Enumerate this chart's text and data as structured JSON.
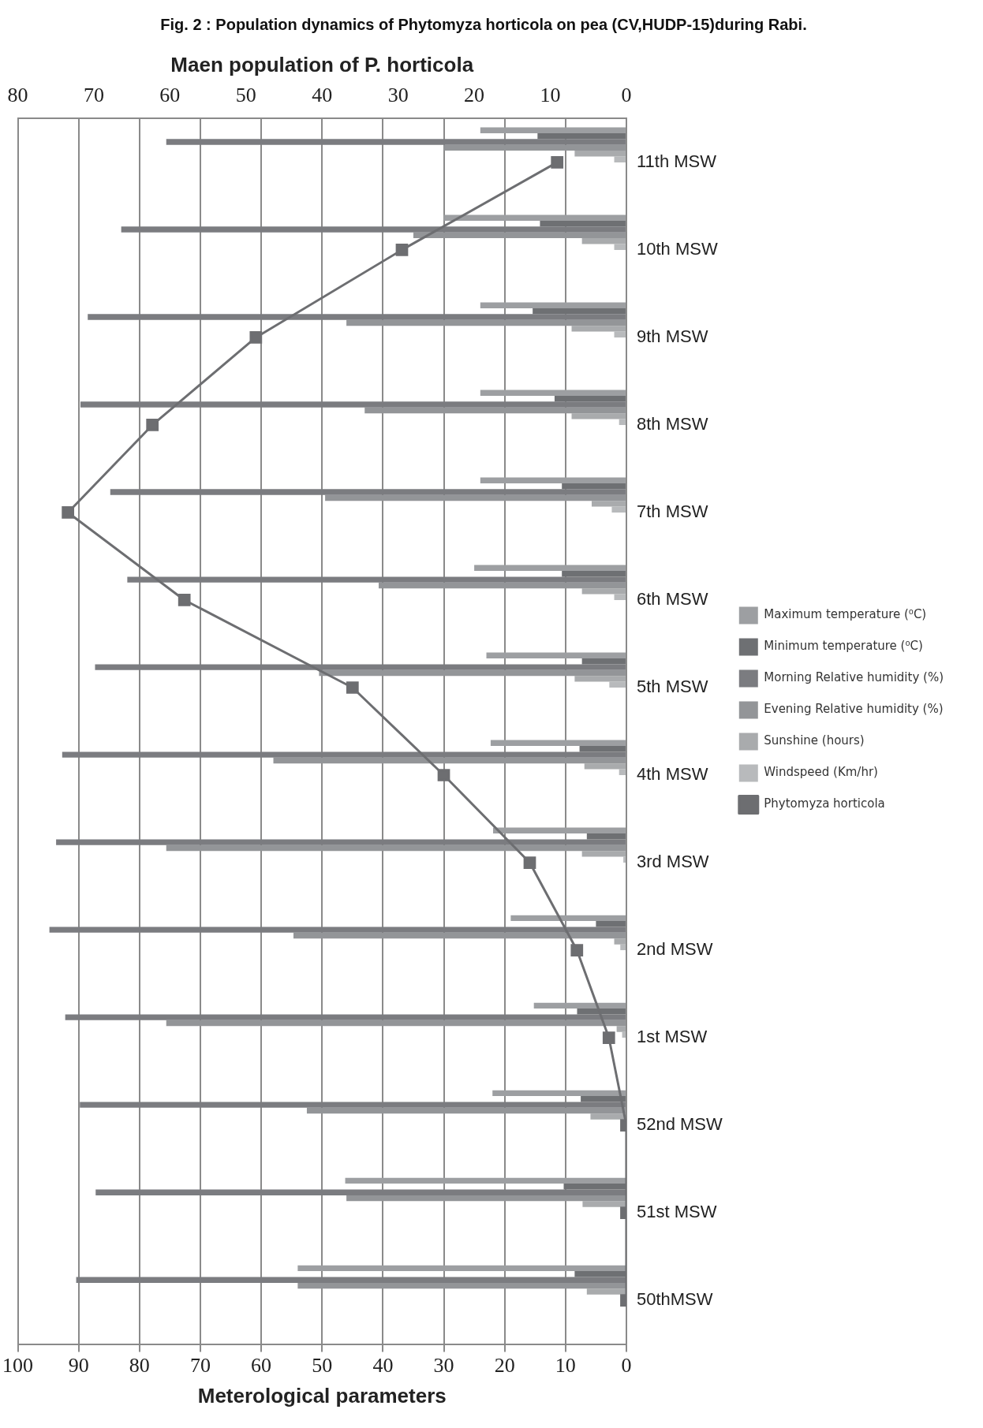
{
  "chart_data": {
    "type": "bar",
    "orientation": "horizontal",
    "title": "Fig. 2 : Population dynamics of Phytomyza horticola on pea (CV,HUDP-15)during Rabi.",
    "xlabel": "Meterological parameters",
    "x2label": "Maen population of P. horticola",
    "categories": [
      "11th MSW",
      "10th MSW",
      "9th MSW",
      "8th MSW",
      "7th MSW",
      "6th MSW",
      "5th MSW",
      "4th MSW",
      "3rd MSW",
      "2nd MSW",
      "1st MSW",
      "52nd MSW",
      "51st MSW",
      "50thMSW"
    ],
    "xlim": [
      100,
      0
    ],
    "xticks": [
      100,
      90,
      80,
      70,
      60,
      50,
      40,
      30,
      20,
      10,
      0
    ],
    "x2lim": [
      80,
      0
    ],
    "x2ticks": [
      80,
      70,
      60,
      50,
      40,
      30,
      20,
      10,
      0
    ],
    "grid": "x",
    "legend": "right",
    "series": [
      {
        "name": "Maximum temperature (⁰C)",
        "color": "#9d9fa2",
        "values": [
          24,
          30,
          24,
          24,
          24,
          25,
          23,
          22.3,
          21.9,
          19,
          15.2,
          22,
          46.2,
          54
        ]
      },
      {
        "name": "Minimum temperature (⁰C)",
        "color": "#6e7073",
        "values": [
          14.6,
          14.2,
          15.4,
          11.8,
          10.6,
          10.6,
          7.3,
          7.7,
          6.5,
          5,
          8.1,
          7.5,
          10.3,
          8.5
        ]
      },
      {
        "name": "Morning Relative humidity (%)",
        "color": "#7b7c80",
        "values": [
          75.6,
          83,
          88.5,
          89.7,
          84.8,
          82,
          87.3,
          92.7,
          93.7,
          94.8,
          92.2,
          89.8,
          87.2,
          90.4
        ]
      },
      {
        "name": "Evening Relative humidity (%)",
        "color": "#939598",
        "values": [
          30,
          35,
          46,
          43,
          49.5,
          40.7,
          50.5,
          58,
          75.6,
          54.7,
          75.6,
          52.5,
          46,
          54
        ]
      },
      {
        "name": "Sunshine (hours)",
        "color": "#a9abad",
        "values": [
          8.5,
          7.3,
          9,
          9,
          5.7,
          7.3,
          8.5,
          6.9,
          7.3,
          2,
          1.6,
          5.9,
          7.2,
          6.5
        ]
      },
      {
        "name": "Windspeed (Km/hr)",
        "color": "#b8babc",
        "values": [
          2,
          2,
          2,
          1.2,
          2.4,
          2,
          2.8,
          1.2,
          0.5,
          1,
          0.7,
          0,
          0,
          0
        ]
      },
      {
        "name": "Phytomyza horticola",
        "type": "line",
        "axis": "x2",
        "marker": "square",
        "color": "#6d6e71",
        "values": [
          9.1,
          29.5,
          48.7,
          62.3,
          73.4,
          58.1,
          36,
          24,
          12.7,
          6.5,
          2.3,
          0,
          0,
          0
        ]
      }
    ]
  }
}
